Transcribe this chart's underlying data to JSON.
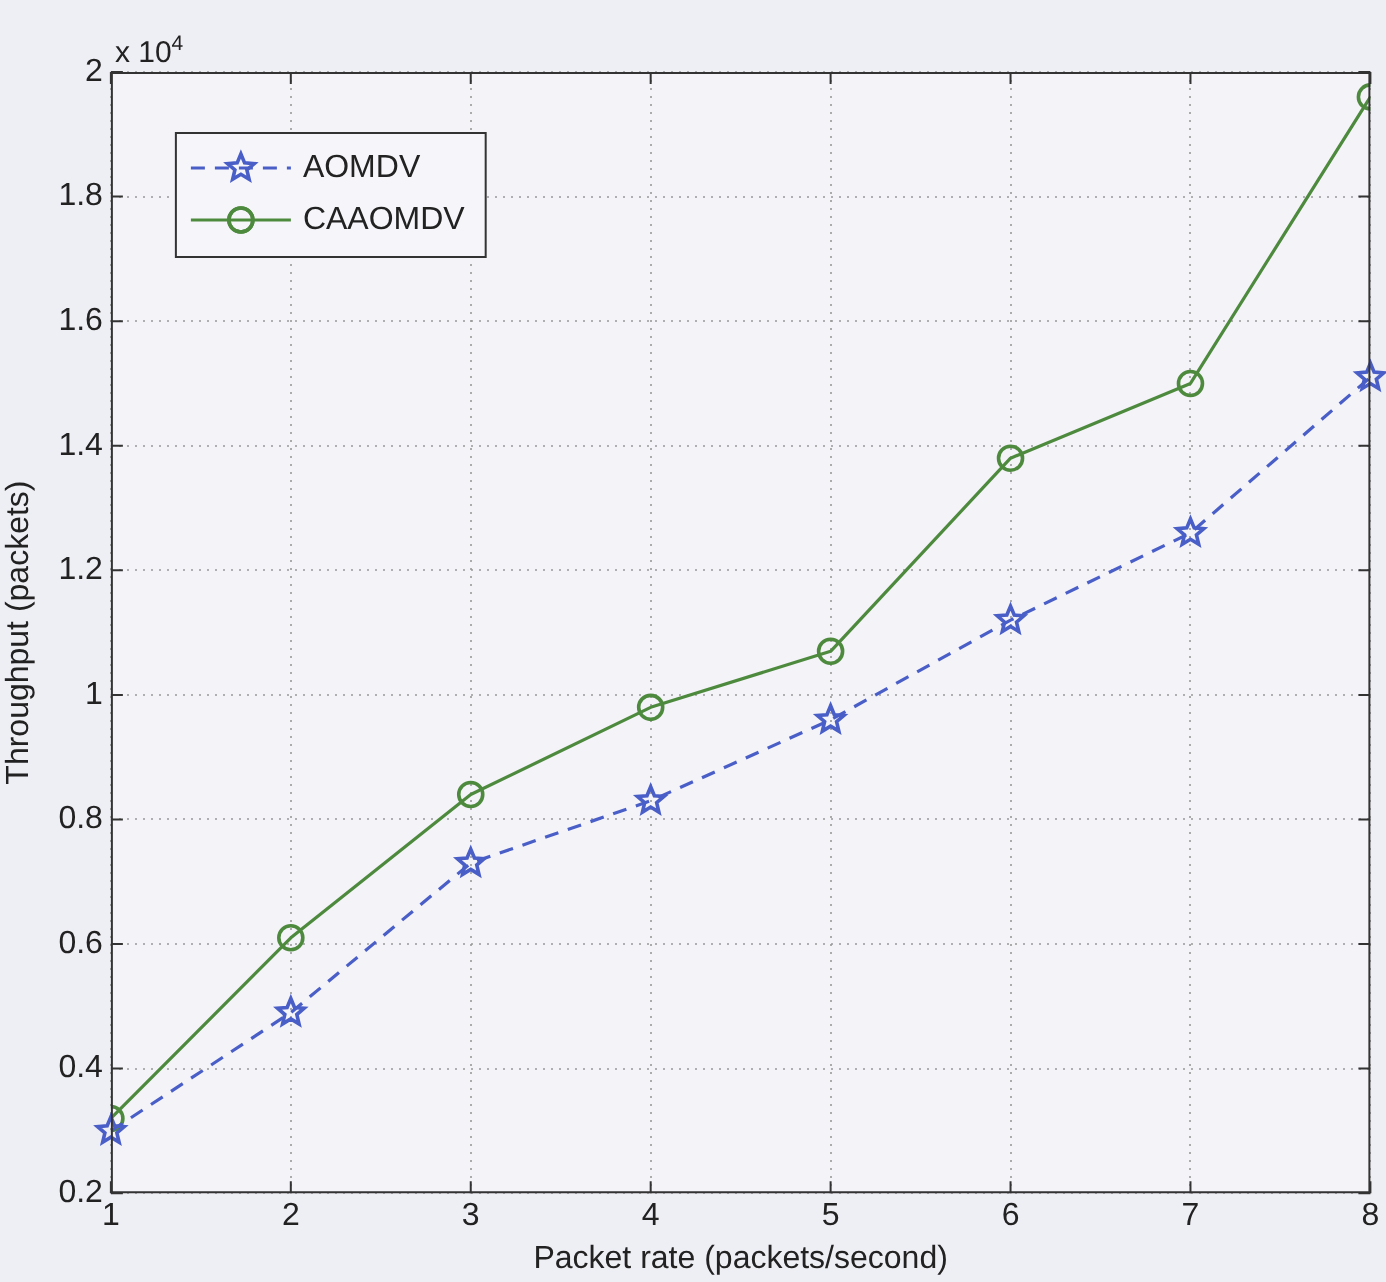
{
  "chart_data": {
    "type": "line",
    "xlabel": "Packet rate (packets/second)",
    "ylabel": "Throughput (packets)",
    "annotations": [
      "x 10$^{4}$"
    ],
    "x": [
      1,
      2,
      3,
      4,
      5,
      6,
      7,
      8
    ],
    "series": [
      {
        "name": "AOMDV",
        "color": "#4a5ec8",
        "marker": "star",
        "line_style": "dashed",
        "values": [
          0.3,
          0.49,
          0.73,
          0.83,
          0.96,
          1.12,
          1.26,
          1.51
        ]
      },
      {
        "name": "CAAOMDV",
        "color": "#4e8a3e",
        "marker": "circle",
        "line_style": "solid",
        "values": [
          0.32,
          0.61,
          0.84,
          0.98,
          1.07,
          1.38,
          1.5,
          1.96
        ]
      }
    ],
    "xlim": [
      1,
      8
    ],
    "xticks": [
      1,
      2,
      3,
      4,
      5,
      6,
      7,
      8
    ],
    "ylim": [
      0.2,
      2
    ],
    "yticks": [
      0.2,
      0.4,
      0.6,
      0.8,
      1,
      1.2,
      1.4,
      1.6,
      1.8,
      2
    ],
    "grid": true,
    "legend": "top left"
  }
}
